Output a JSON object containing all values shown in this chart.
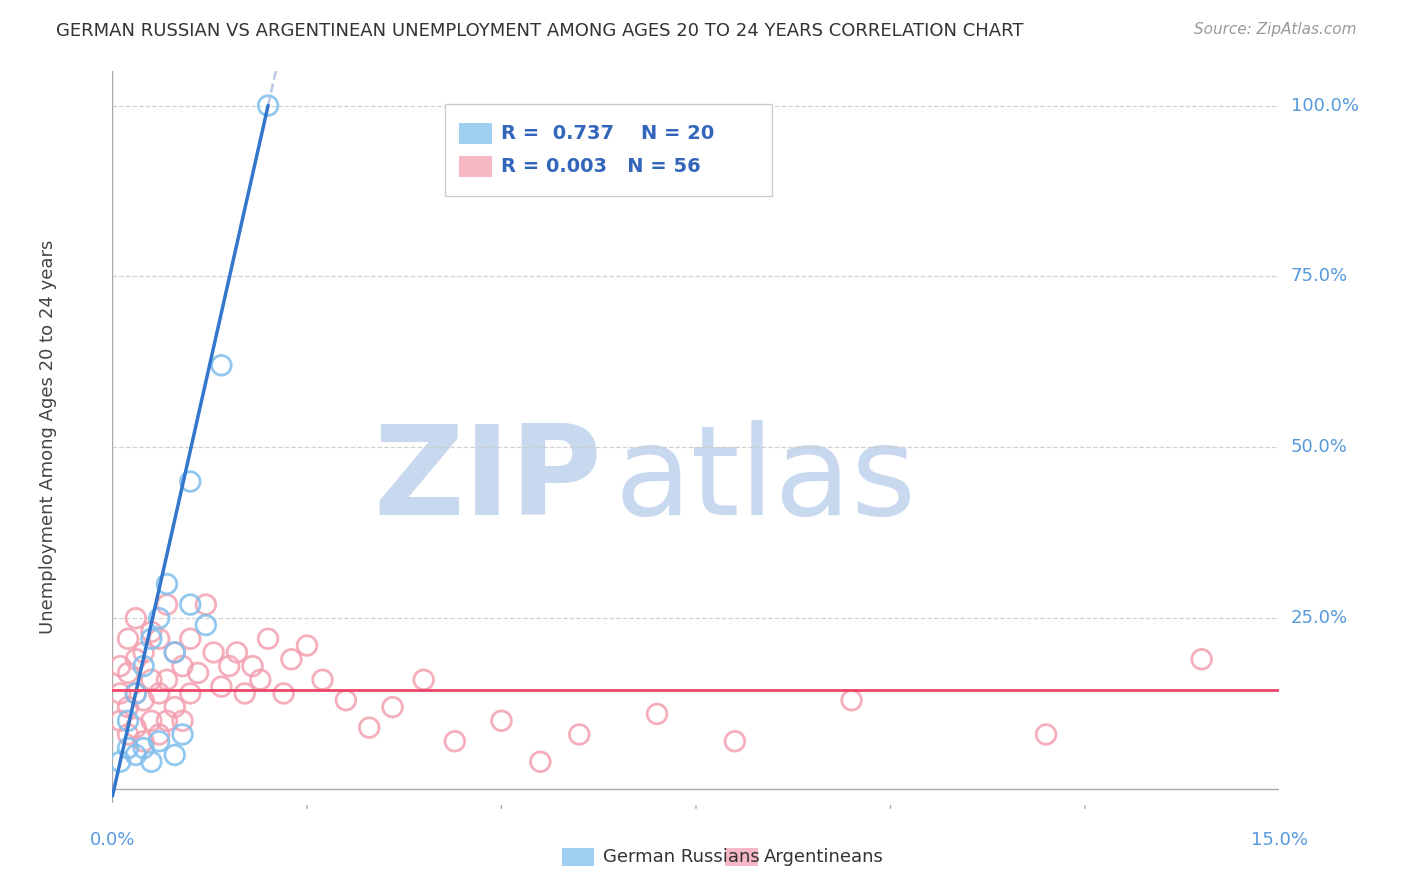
{
  "title": "GERMAN RUSSIAN VS ARGENTINEAN UNEMPLOYMENT AMONG AGES 20 TO 24 YEARS CORRELATION CHART",
  "source_text": "Source: ZipAtlas.com",
  "ylabel": "Unemployment Among Ages 20 to 24 years",
  "xlim": [
    0.0,
    0.15
  ],
  "ylim": [
    -0.02,
    1.05
  ],
  "blue_color": "#7fbfed",
  "pink_color": "#f4a0b0",
  "blue_line_color": "#3377cc",
  "pink_line_color": "#ee4466",
  "title_color": "#333333",
  "axis_color": "#5599dd",
  "watermark_zip_color": "#c8d8ee",
  "watermark_atlas_color": "#c8d8ee",
  "grid_color": "#cccccc",
  "legend_r1": "R =  0.737",
  "legend_n1": "N = 20",
  "legend_r2": "R = 0.003",
  "legend_n2": "N = 56",
  "legend_label1": "German Russians",
  "legend_label2": "Argentineans",
  "german_russian_x": [
    0.001,
    0.002,
    0.002,
    0.003,
    0.003,
    0.004,
    0.004,
    0.005,
    0.005,
    0.006,
    0.006,
    0.007,
    0.008,
    0.008,
    0.009,
    0.01,
    0.01,
    0.012,
    0.014,
    0.02
  ],
  "german_russian_y": [
    0.04,
    0.06,
    0.1,
    0.05,
    0.14,
    0.06,
    0.18,
    0.04,
    0.22,
    0.07,
    0.25,
    0.3,
    0.05,
    0.2,
    0.08,
    0.27,
    0.45,
    0.24,
    0.62,
    1.0
  ],
  "argentinean_x": [
    0.001,
    0.001,
    0.001,
    0.002,
    0.002,
    0.002,
    0.002,
    0.003,
    0.003,
    0.003,
    0.003,
    0.004,
    0.004,
    0.004,
    0.005,
    0.005,
    0.005,
    0.006,
    0.006,
    0.006,
    0.007,
    0.007,
    0.007,
    0.008,
    0.008,
    0.009,
    0.009,
    0.01,
    0.01,
    0.011,
    0.012,
    0.013,
    0.014,
    0.015,
    0.016,
    0.017,
    0.018,
    0.019,
    0.02,
    0.022,
    0.023,
    0.025,
    0.027,
    0.03,
    0.033,
    0.036,
    0.04,
    0.044,
    0.05,
    0.055,
    0.06,
    0.07,
    0.08,
    0.095,
    0.12,
    0.14
  ],
  "argentinean_y": [
    0.1,
    0.14,
    0.18,
    0.08,
    0.12,
    0.17,
    0.22,
    0.09,
    0.14,
    0.19,
    0.25,
    0.07,
    0.13,
    0.2,
    0.1,
    0.16,
    0.23,
    0.08,
    0.14,
    0.22,
    0.1,
    0.16,
    0.27,
    0.12,
    0.2,
    0.1,
    0.18,
    0.14,
    0.22,
    0.17,
    0.27,
    0.2,
    0.15,
    0.18,
    0.2,
    0.14,
    0.18,
    0.16,
    0.22,
    0.14,
    0.19,
    0.21,
    0.16,
    0.13,
    0.09,
    0.12,
    0.16,
    0.07,
    0.1,
    0.04,
    0.08,
    0.11,
    0.07,
    0.13,
    0.08,
    0.19
  ],
  "gr_line_x0": 0.0,
  "gr_line_x1": 0.02,
  "gr_line_y0": -0.01,
  "gr_line_y1": 1.0,
  "gr_line_ext_x0": 0.02,
  "gr_line_ext_x1": 0.15,
  "arg_line_y": 0.145
}
